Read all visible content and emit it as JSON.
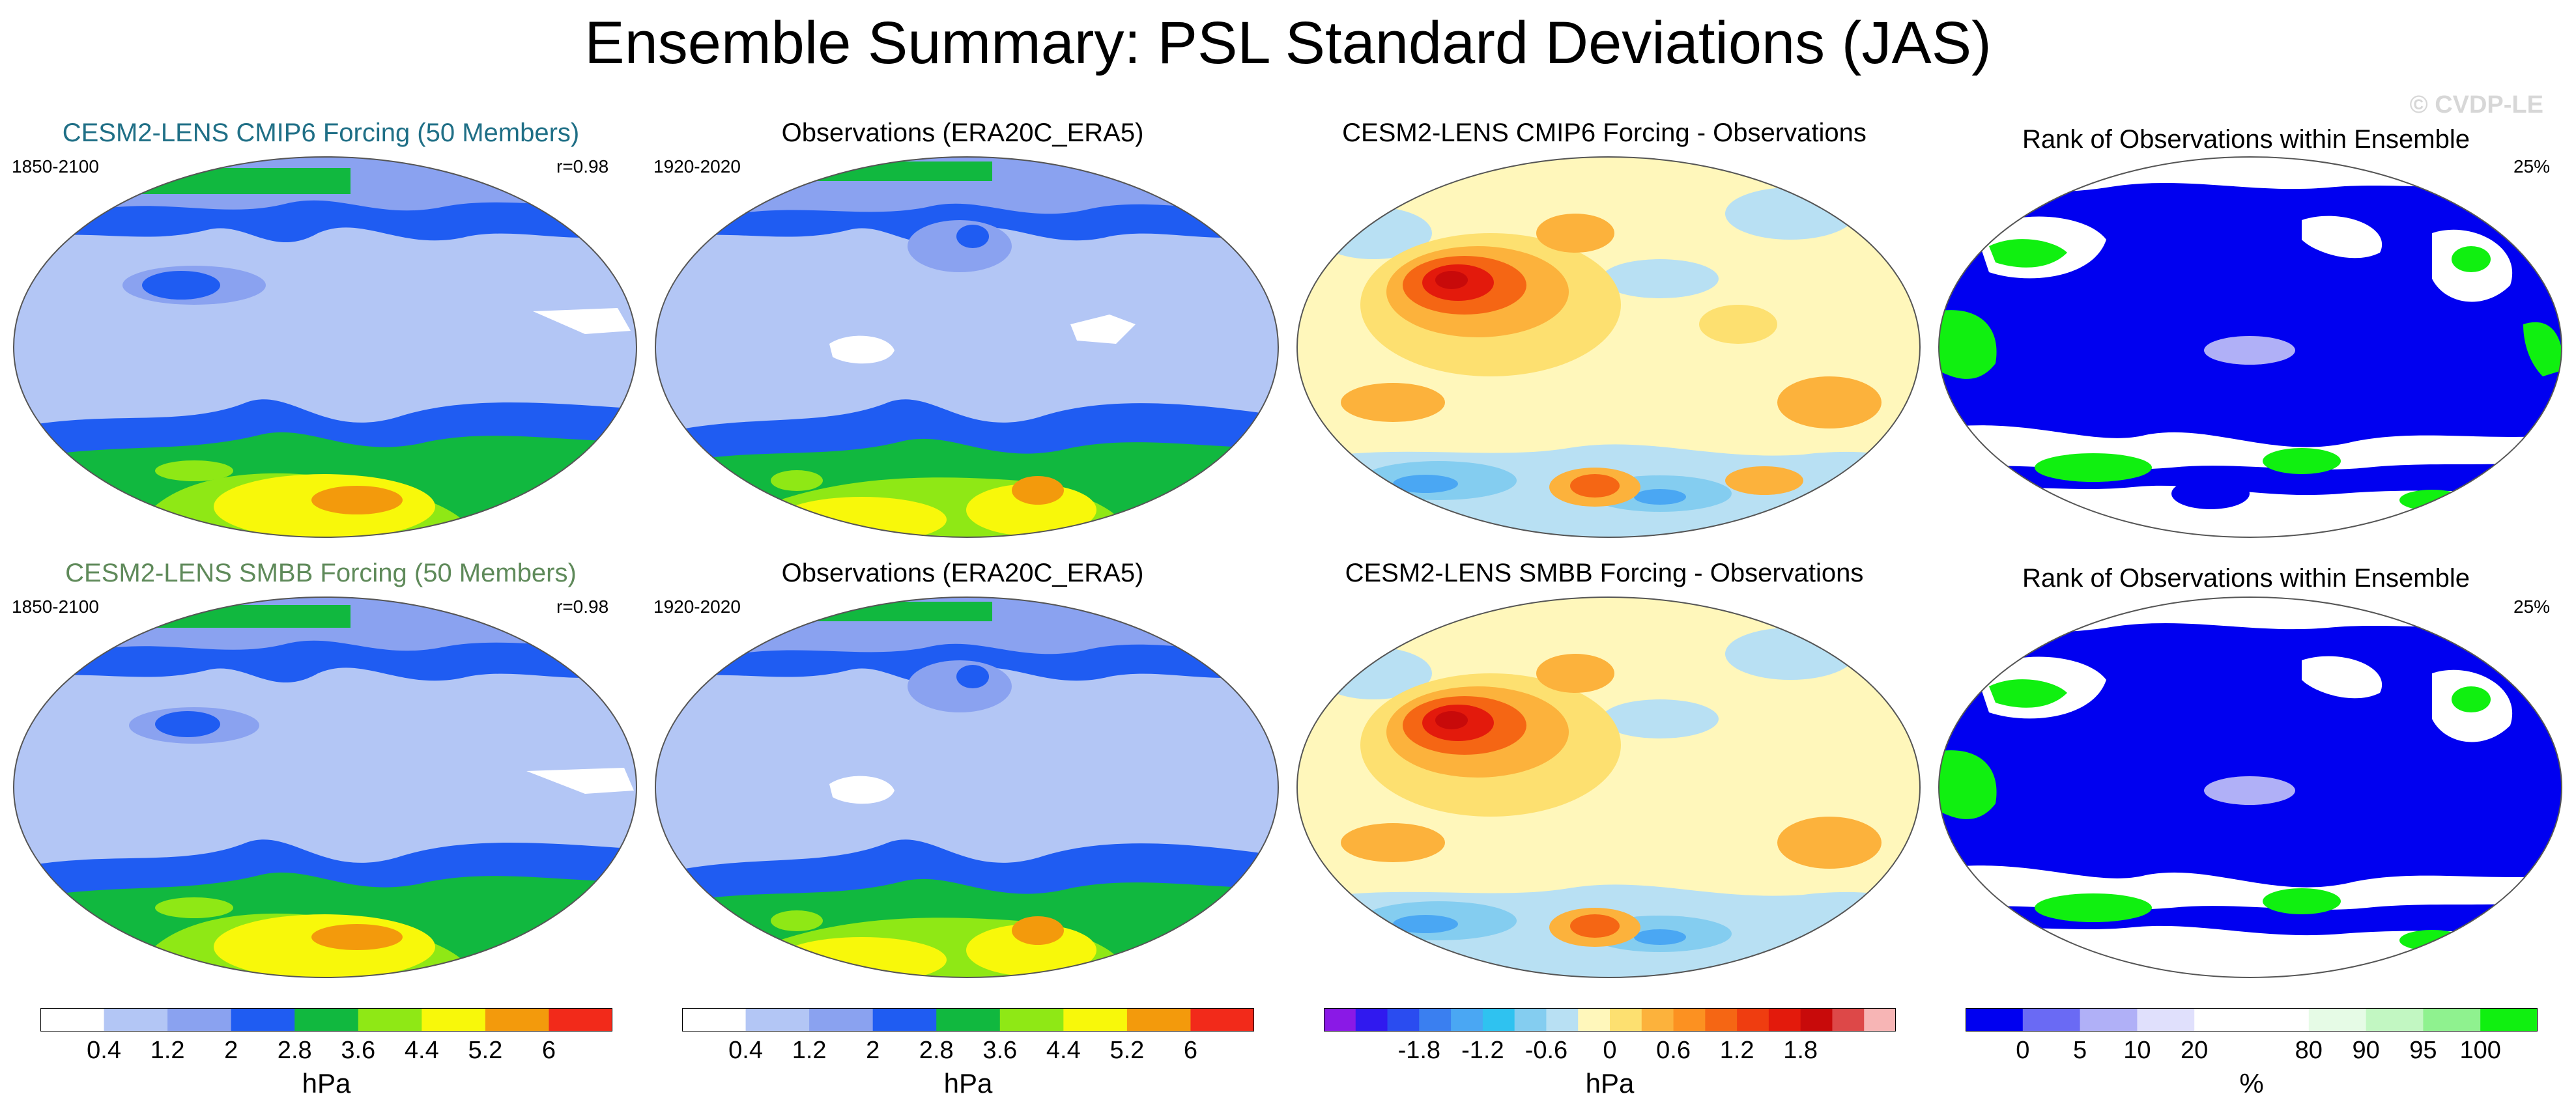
{
  "title": "Ensemble Summary: PSL Standard Deviations (JAS)",
  "watermark": "© CVDP-LE",
  "rows": [
    {
      "panels": [
        {
          "title": "CESM2-LENS CMIP6 Forcing (50 Members)",
          "title_color": "#1f6f86",
          "left_note": "1850-2100",
          "right_note": "r=0.98",
          "kind": "std"
        },
        {
          "title": "Observations (ERA20C_ERA5)",
          "title_color": "#000000",
          "left_note": "1920-2020",
          "right_note": "",
          "kind": "std"
        },
        {
          "title": "CESM2-LENS CMIP6 Forcing - Observations",
          "title_color": "#000000",
          "left_note": "",
          "right_note": "",
          "kind": "diff"
        },
        {
          "title": "Rank of Observations within Ensemble",
          "title_color": "#000000",
          "left_note": "",
          "right_note": "25%",
          "kind": "rank"
        }
      ]
    },
    {
      "panels": [
        {
          "title": "CESM2-LENS SMBB Forcing (50 Members)",
          "title_color": "#5f8a5a",
          "left_note": "1850-2100",
          "right_note": "r=0.98",
          "kind": "std"
        },
        {
          "title": "Observations (ERA20C_ERA5)",
          "title_color": "#000000",
          "left_note": "1920-2020",
          "right_note": "",
          "kind": "std"
        },
        {
          "title": "CESM2-LENS SMBB Forcing - Observations",
          "title_color": "#000000",
          "left_note": "",
          "right_note": "",
          "kind": "diff"
        },
        {
          "title": "Rank of Observations within Ensemble",
          "title_color": "#000000",
          "left_note": "",
          "right_note": "25%",
          "kind": "rank"
        }
      ]
    }
  ],
  "colorbars": [
    {
      "units": "hPa",
      "colors": [
        "#ffffff",
        "#b3c6f5",
        "#8aa2f0",
        "#1f5cf2",
        "#11b83f",
        "#8fe815",
        "#f8f80a",
        "#f39a0c",
        "#f22a1a"
      ],
      "labels": [
        "0.4",
        "1.2",
        "2",
        "2.8",
        "3.6",
        "4.4",
        "5.2",
        "6"
      ]
    },
    {
      "units": "hPa",
      "colors": [
        "#ffffff",
        "#b3c6f5",
        "#8aa2f0",
        "#1f5cf2",
        "#11b83f",
        "#8fe815",
        "#f8f80a",
        "#f39a0c",
        "#f22a1a"
      ],
      "labels": [
        "0.4",
        "1.2",
        "2",
        "2.8",
        "3.6",
        "4.4",
        "5.2",
        "6"
      ]
    },
    {
      "units": "hPa",
      "colors": [
        "#8a19e6",
        "#3019ef",
        "#2a4cf0",
        "#3a7ff0",
        "#4aa7f3",
        "#2fc2f0",
        "#84cdf0",
        "#b8e0f3",
        "#fff7bb",
        "#fde070",
        "#fcb23c",
        "#fc9121",
        "#f56614",
        "#ef3d10",
        "#e31a0c",
        "#c80a0a",
        "#dd4848",
        "#f7b5b5"
      ],
      "labels": [
        "-1.8",
        "-1.2",
        "-0.6",
        "0",
        "0.6",
        "1.2",
        "1.8"
      ]
    },
    {
      "units": "%",
      "colors": [
        "#0000f0",
        "#6a6af4",
        "#b0b0f7",
        "#e0e0fc",
        "#ffffff",
        "#ffffff",
        "#e6fbe6",
        "#c2f7c2",
        "#8ff28f",
        "#10f010"
      ],
      "labels": [
        "0",
        "5",
        "10",
        "20",
        "80",
        "90",
        "95",
        "100"
      ]
    }
  ]
}
